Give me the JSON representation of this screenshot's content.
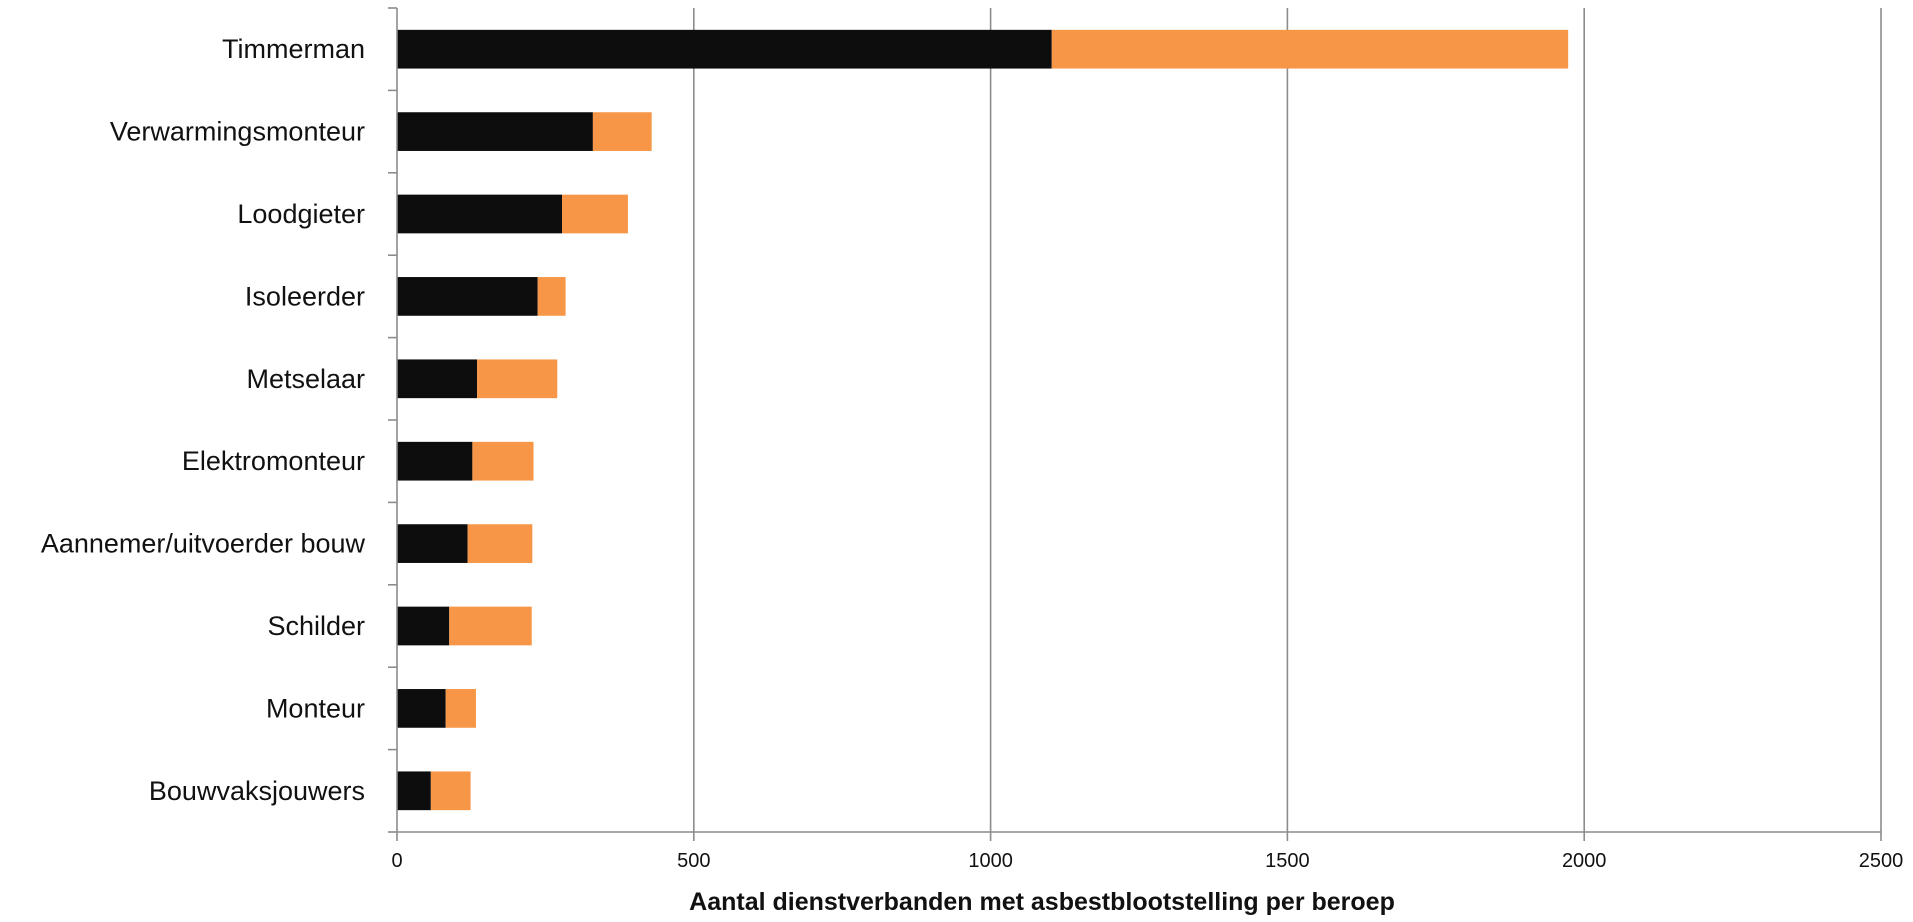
{
  "chart_data": {
    "type": "bar",
    "orientation": "horizontal",
    "stacked": true,
    "title": "",
    "xlabel": "Aantal dienstverbanden met asbestblootstelling per beroep",
    "ylabel": "",
    "xlim": [
      0,
      2500
    ],
    "xticks": [
      0,
      500,
      1000,
      1500,
      2000,
      2500
    ],
    "xtick_labels": [
      "0",
      "500",
      "1000",
      "1500",
      "2000",
      "2500"
    ],
    "grid": "vertical",
    "legend": "none",
    "categories": [
      "Timmerman",
      "Verwarmingsmonteur",
      "Loodgieter",
      "Isoleerder",
      "Metselaar",
      "Elektromonteur",
      "Aannemer/uitvoerder bouw",
      "Schilder",
      "Monteur",
      "Bouwvaksjouwers"
    ],
    "series": [
      {
        "color": "#0d0d0d",
        "values": [
          1103,
          330,
          278,
          237,
          135,
          127,
          119,
          88,
          82,
          57
        ]
      },
      {
        "color": "#f79646",
        "values": [
          870,
          99,
          111,
          47,
          135,
          103,
          109,
          139,
          51,
          67
        ]
      }
    ]
  },
  "colors": {
    "grid": "#8c8c8c",
    "axis": "#8c8c8c",
    "text": "#111111"
  }
}
